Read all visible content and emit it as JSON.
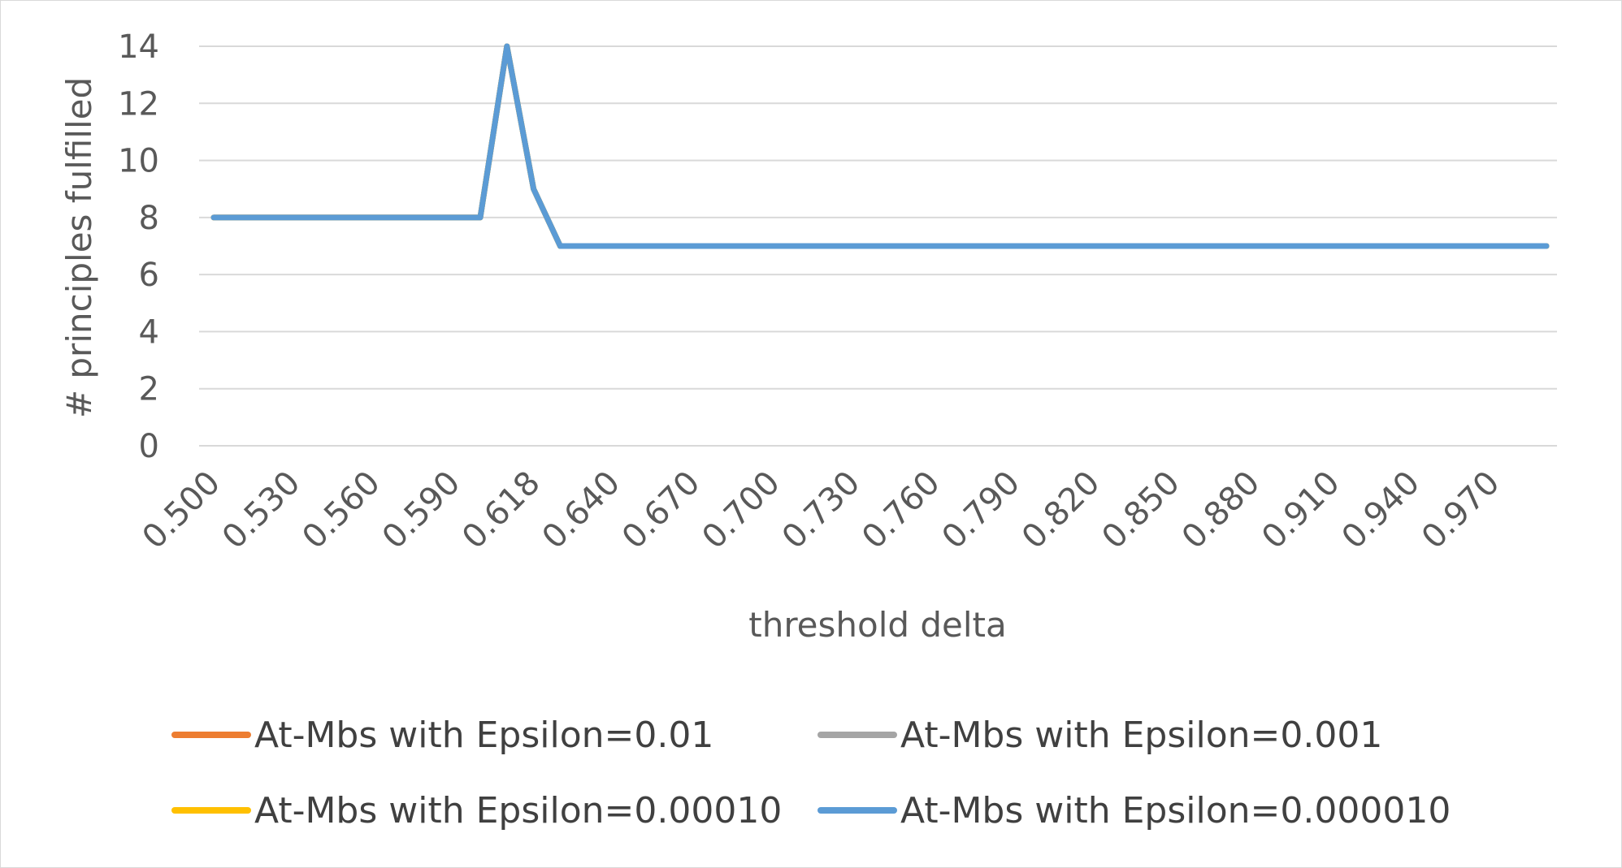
{
  "chart_data": {
    "type": "line",
    "title": "",
    "xlabel": "threshold delta",
    "ylabel": "# principles fulfilled",
    "ylim": [
      0,
      14
    ],
    "yticks": [
      0,
      2,
      4,
      6,
      8,
      10,
      12,
      14
    ],
    "grid": true,
    "legend_position": "bottom",
    "x_tick_labels": [
      "0.500",
      "0.530",
      "0.560",
      "0.590",
      "0.618",
      "0.640",
      "0.670",
      "0.700",
      "0.730",
      "0.760",
      "0.790",
      "0.820",
      "0.850",
      "0.880",
      "0.910",
      "0.940",
      "0.970"
    ],
    "series": [
      {
        "name": "At-Mbs with Epsilon=0.01",
        "color": "#ED7D31",
        "values": [
          8,
          8,
          8,
          8,
          8,
          8,
          8,
          8,
          8,
          8,
          8,
          14,
          9,
          7,
          7,
          7,
          7,
          7,
          7,
          7,
          7,
          7,
          7,
          7,
          7,
          7,
          7,
          7,
          7,
          7,
          7,
          7,
          7,
          7,
          7,
          7,
          7,
          7,
          7,
          7,
          7,
          7,
          7,
          7,
          7,
          7,
          7,
          7,
          7,
          7,
          7
        ]
      },
      {
        "name": "At-Mbs with Epsilon=0.001",
        "color": "#A5A5A5",
        "values": [
          8,
          8,
          8,
          8,
          8,
          8,
          8,
          8,
          8,
          8,
          8,
          14,
          9,
          7,
          7,
          7,
          7,
          7,
          7,
          7,
          7,
          7,
          7,
          7,
          7,
          7,
          7,
          7,
          7,
          7,
          7,
          7,
          7,
          7,
          7,
          7,
          7,
          7,
          7,
          7,
          7,
          7,
          7,
          7,
          7,
          7,
          7,
          7,
          7,
          7,
          7
        ]
      },
      {
        "name": "At-Mbs with Epsilon=0.00010",
        "color": "#FFC000",
        "values": [
          8,
          8,
          8,
          8,
          8,
          8,
          8,
          8,
          8,
          8,
          8,
          14,
          9,
          7,
          7,
          7,
          7,
          7,
          7,
          7,
          7,
          7,
          7,
          7,
          7,
          7,
          7,
          7,
          7,
          7,
          7,
          7,
          7,
          7,
          7,
          7,
          7,
          7,
          7,
          7,
          7,
          7,
          7,
          7,
          7,
          7,
          7,
          7,
          7,
          7,
          7
        ]
      },
      {
        "name": "At-Mbs with Epsilon=0.000010",
        "color": "#5B9BD5",
        "values": [
          8,
          8,
          8,
          8,
          8,
          8,
          8,
          8,
          8,
          8,
          8,
          14,
          9,
          7,
          7,
          7,
          7,
          7,
          7,
          7,
          7,
          7,
          7,
          7,
          7,
          7,
          7,
          7,
          7,
          7,
          7,
          7,
          7,
          7,
          7,
          7,
          7,
          7,
          7,
          7,
          7,
          7,
          7,
          7,
          7,
          7,
          7,
          7,
          7,
          7,
          7
        ]
      }
    ]
  }
}
